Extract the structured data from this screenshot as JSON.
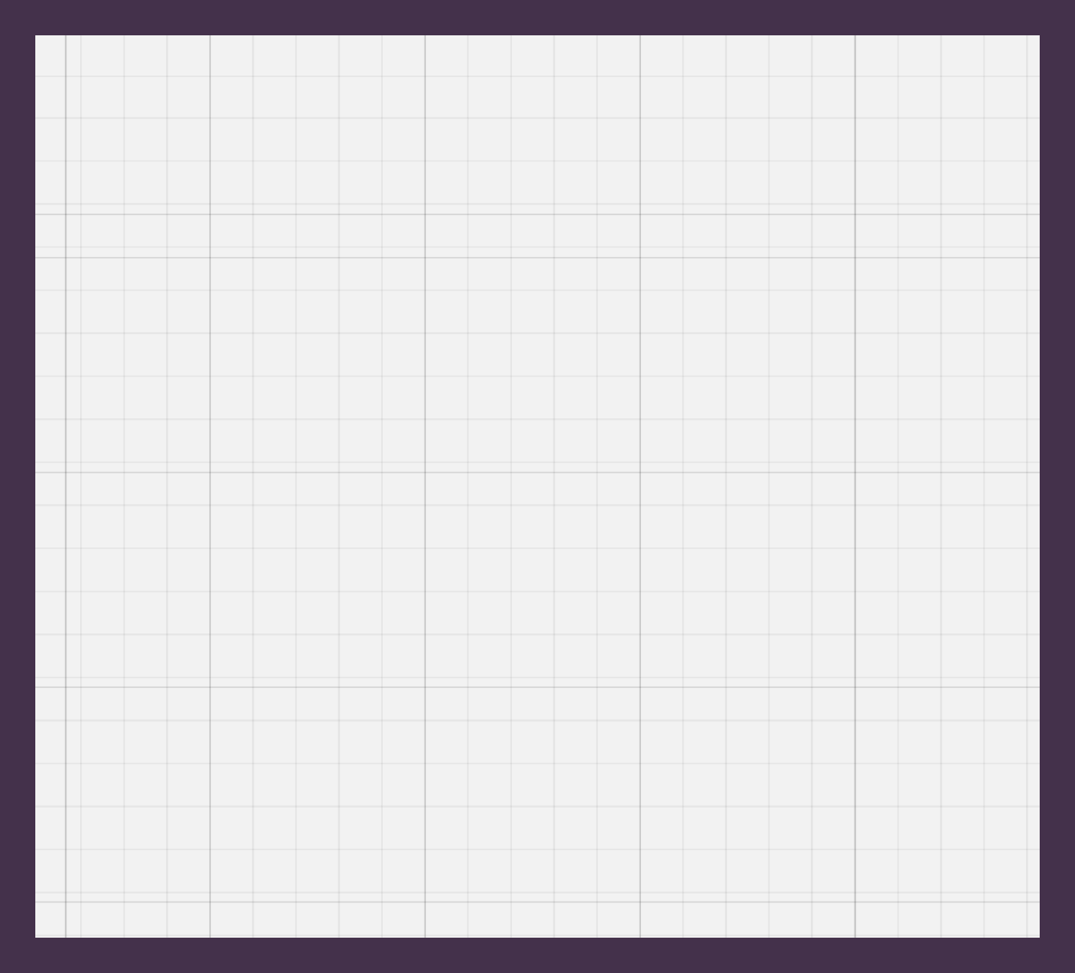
{
  "window": {
    "title": ""
  },
  "canvas": {
    "label": "",
    "background_color": "#f2f2f2",
    "frame_color": "#44314b",
    "grid": {
      "visible": true,
      "minor_line_color": "#e5e5e5",
      "major_line_color": "#d3d3d3"
    }
  }
}
